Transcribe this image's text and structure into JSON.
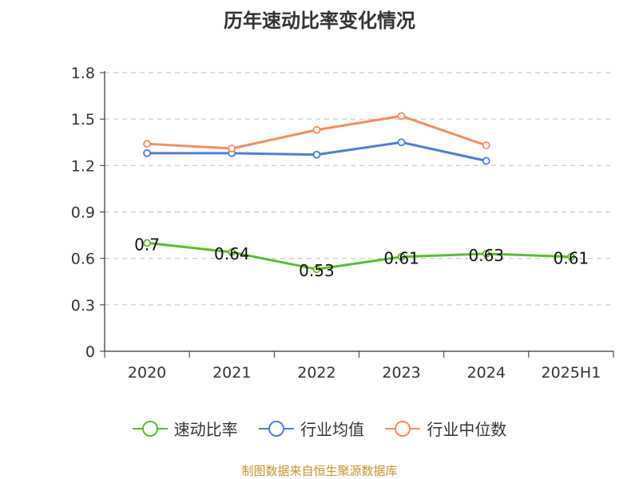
{
  "chart_data": {
    "type": "line",
    "title": "历年速动比率变化情况",
    "categories": [
      "2020",
      "2021",
      "2022",
      "2023",
      "2024",
      "2025H1"
    ],
    "yticks": [
      "0",
      "0.3",
      "0.6",
      "0.9",
      "1.2",
      "1.5",
      "1.8"
    ],
    "ylim": [
      0,
      1.8
    ],
    "grid": true,
    "legend_position": "bottom",
    "series": [
      {
        "name": "速动比率",
        "color": "#5cbe28",
        "values": [
          0.7,
          0.64,
          0.53,
          0.61,
          0.63,
          0.61
        ],
        "data_labels": [
          "0.7",
          "0.64",
          "0.53",
          "0.61",
          "0.63",
          "0.61"
        ]
      },
      {
        "name": "行业均值",
        "color": "#4e7ddf",
        "values": [
          1.28,
          1.28,
          1.27,
          1.35,
          1.23,
          null
        ]
      },
      {
        "name": "行业中位数",
        "color": "#f68c5a",
        "values": [
          1.34,
          1.31,
          1.43,
          1.52,
          1.33,
          null
        ]
      }
    ]
  },
  "footer": {
    "text": "制图数据来自恒生聚源数据库",
    "color": "#c5932b"
  }
}
